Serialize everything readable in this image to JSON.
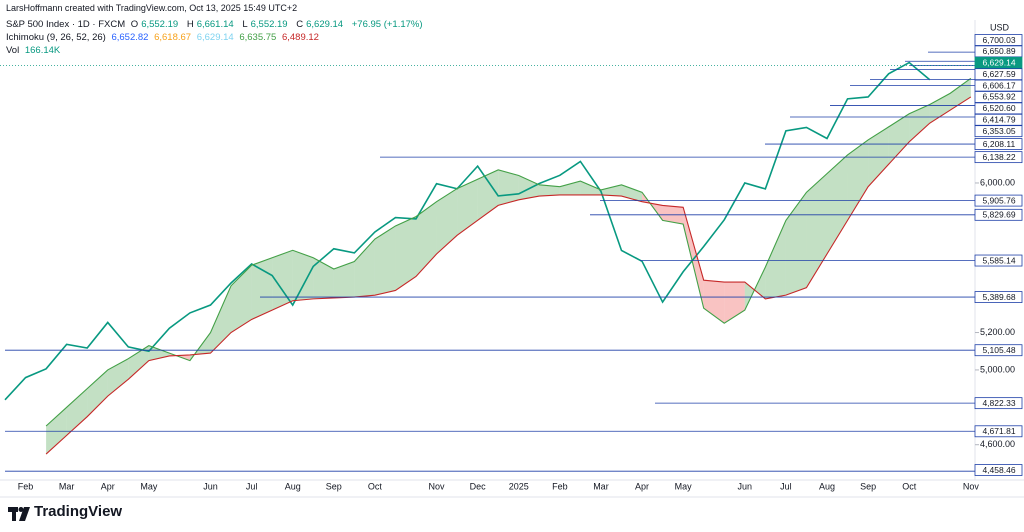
{
  "header": {
    "credit": "LarsHoffmann created with TradingView.com, Oct 13, 2025 15:49 UTC+2",
    "symbol": "S&P 500 Index · 1D · FXCM",
    "ohlc": [
      {
        "key": "O",
        "text": "6,552.19"
      },
      {
        "key": "H",
        "text": "6,661.14"
      },
      {
        "key": "L",
        "text": "6,552.19"
      },
      {
        "key": "C",
        "text": "6,629.14"
      }
    ],
    "change": "+76.95 (+1.17%)",
    "value_color": "#089981",
    "ichimoku": {
      "name": "Ichimoku (9, 26, 52, 26)",
      "values": [
        {
          "text": "6,652.82",
          "color": "#2962ff"
        },
        {
          "text": "6,618.67",
          "color": "#f7a21b"
        },
        {
          "text": "6,629.14",
          "color": "#7fd3f0"
        },
        {
          "text": "6,635.75",
          "color": "#43a047"
        },
        {
          "text": "6,489.12",
          "color": "#c62828"
        }
      ]
    },
    "volume": {
      "name": "Vol",
      "text": "166.14K"
    }
  },
  "chart_data": {
    "type": "line",
    "unit": "USD",
    "categories": [
      null,
      "Feb",
      null,
      "Mar",
      null,
      "Apr",
      null,
      "May",
      null,
      null,
      "Jun",
      null,
      "Jul",
      null,
      "Aug",
      null,
      "Sep",
      null,
      "Oct",
      null,
      null,
      "Nov",
      null,
      "Dec",
      null,
      "2025",
      null,
      "Feb",
      null,
      "Mar",
      null,
      "Apr",
      null,
      "May",
      null,
      null,
      "Jun",
      null,
      "Jul",
      null,
      "Aug",
      null,
      "Sep",
      null,
      "Oct",
      null,
      null,
      "Nov"
    ],
    "series": [
      {
        "color": "#089981",
        "values": [
          4840,
          4959,
          5006,
          5137,
          5117,
          5254,
          5123,
          5100,
          5223,
          5305,
          5347,
          5465,
          5567,
          5505,
          5347,
          5554,
          5648,
          5626,
          5738,
          5815,
          5808,
          5996,
          5969,
          6090,
          5931,
          5942,
          5997,
          6041,
          6115,
          5955,
          5639,
          5581,
          5363,
          5525,
          5660,
          5803,
          6000,
          5968,
          6279,
          6297,
          6238,
          6450,
          6460,
          6584,
          6644,
          6552,
          null,
          null
        ]
      },
      {
        "color": "#43a047",
        "values": [
          null,
          null,
          4700,
          4800,
          4900,
          5000,
          5060,
          5130,
          5090,
          5050,
          5200,
          5450,
          5560,
          5600,
          5640,
          5600,
          5540,
          5580,
          5700,
          5770,
          5820,
          5900,
          5970,
          6020,
          6070,
          6040,
          5990,
          5980,
          6010,
          5963,
          5990,
          5950,
          5800,
          5780,
          5330,
          5250,
          5320,
          5550,
          5800,
          5950,
          6050,
          6150,
          6230,
          6300,
          6370,
          6420,
          6480,
          6560
        ]
      },
      {
        "color": "#c62828",
        "values": [
          null,
          null,
          4550,
          4650,
          4750,
          4860,
          4950,
          5050,
          5075,
          5080,
          5090,
          5200,
          5270,
          5320,
          5370,
          5380,
          5385,
          5390,
          5400,
          5425,
          5500,
          5620,
          5720,
          5800,
          5880,
          5910,
          5930,
          5936,
          5936,
          5936,
          5930,
          5900,
          5880,
          5870,
          5480,
          5470,
          5470,
          5380,
          5400,
          5440,
          5620,
          5800,
          5980,
          6100,
          6220,
          6320,
          6390,
          6460
        ]
      }
    ],
    "cloud_colors": {
      "up": "rgba(67,160,71,0.32)",
      "down": "rgba(239,83,80,0.35)"
    },
    "ylim": [
      4438,
      6861
    ],
    "yticks": [
      {
        "value": 4600,
        "label": "4,600.00"
      },
      {
        "value": 5000,
        "label": "5,000.00"
      },
      {
        "value": 5200,
        "label": "5,200.00"
      },
      {
        "value": 6000,
        "label": "6,000.00"
      }
    ],
    "level_color": "#1e3fa8",
    "levels": [
      {
        "value": 6700.03,
        "label": "6,700.03"
      },
      {
        "value": 6650.89,
        "label": "6,650.89"
      },
      {
        "value": 6627.59,
        "label": "6,627.59"
      },
      {
        "value": 6606.17,
        "label": "6,606.17"
      },
      {
        "value": 6553.92,
        "label": "6,553.92"
      },
      {
        "value": 6520.6,
        "label": "6,520.60"
      },
      {
        "value": 6414.79,
        "label": "6,414.79"
      },
      {
        "value": 6353.05,
        "label": "6,353.05"
      },
      {
        "value": 6208.11,
        "label": "6,208.11"
      },
      {
        "value": 6138.22,
        "label": "6,138.22"
      },
      {
        "value": 5905.76,
        "label": "5,905.76"
      },
      {
        "value": 5829.69,
        "label": "5,829.69"
      },
      {
        "value": 5585.14,
        "label": "5,585.14"
      },
      {
        "value": 5389.68,
        "label": "5,389.68"
      },
      {
        "value": 5105.48,
        "label": "5,105.48"
      },
      {
        "value": 4822.33,
        "label": "4,822.33"
      },
      {
        "value": 4671.81,
        "label": "4,671.81"
      },
      {
        "value": 4458.46,
        "label": "4,458.46"
      }
    ],
    "current": {
      "value": 6629.14,
      "label": "6,629.14",
      "color": "#089981"
    }
  },
  "footer": {
    "brand": "TradingView"
  }
}
